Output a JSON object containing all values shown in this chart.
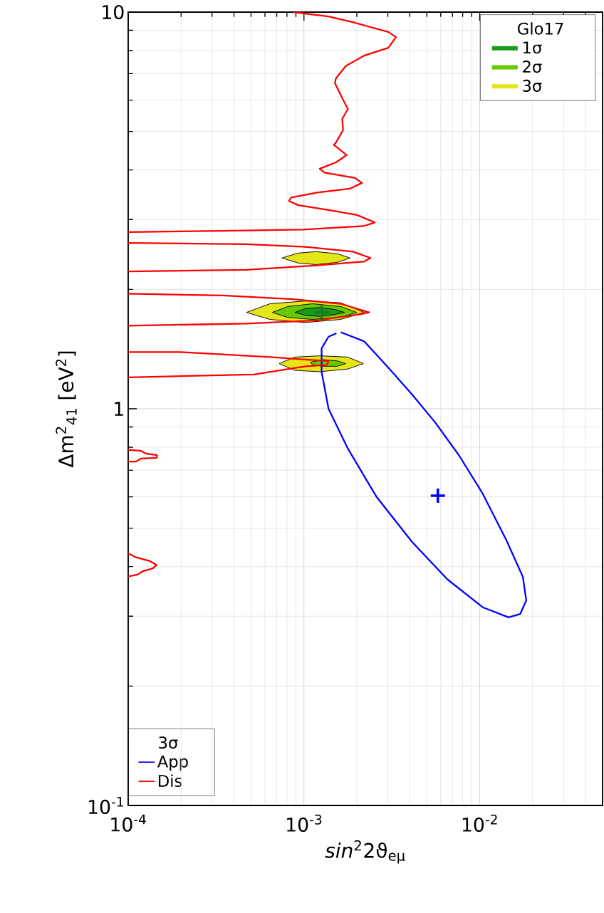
{
  "chart_data": {
    "type": "line",
    "xlabel": "*sin*$^{2}$2ϑ$_{eμ}$",
    "ylabel": "Δm$^{2}$$_{41}$   [eV$^{2}$]",
    "legend_title": "Glo17",
    "annotations": [
      "3σ"
    ],
    "xlim": [
      0.0001,
      0.05
    ],
    "ylim": [
      0.1,
      10
    ],
    "xticks": [
      {
        "value": 0.0001,
        "label": "10$^{-4}$"
      },
      {
        "value": 0.001,
        "label": "10$^{-3}$"
      },
      {
        "value": 0.01,
        "label": "10$^{-2}$"
      }
    ],
    "yticks": [
      {
        "value": 0.1,
        "label": "10$^{-1}$"
      },
      1,
      10
    ],
    "log": "xy",
    "grid": true,
    "legend": "bottom left",
    "series": [
      {
        "name": "1σ",
        "type": "area",
        "color": "#1a9a1a",
        "x": [
          0.000887,
          0.00102,
          0.00123,
          0.0015,
          0.0017,
          0.0015,
          0.00123,
          0.00102,
          0.000887
        ],
        "values": [
          1.75,
          1.79,
          1.8,
          1.78,
          1.75,
          1.73,
          1.71,
          1.72,
          1.75
        ]
      },
      {
        "name": "2σ",
        "type": "area",
        "color": "#66cc00",
        "x": [
          0.00066,
          0.000807,
          0.00112,
          0.00162,
          0.002,
          0.00162,
          0.00112,
          0.000807,
          0.00066,
          null,
          0.00109,
          0.00129,
          0.00155,
          0.00173,
          0.00155,
          0.00129,
          0.00112,
          0.00109
        ],
        "values": [
          1.75,
          1.81,
          1.84,
          1.81,
          1.75,
          1.7,
          1.68,
          1.7,
          1.75,
          null,
          1.31,
          1.33,
          1.32,
          1.3,
          1.28,
          1.28,
          1.29,
          1.31
        ]
      },
      {
        "name": "3σ",
        "type": "area",
        "color": "#e5e51a",
        "x": [
          0.00075,
          0.000929,
          0.00117,
          0.00155,
          0.00183,
          0.00155,
          0.00117,
          0.000929,
          0.00075,
          null,
          0.000471,
          0.00064,
          0.00102,
          0.00162,
          0.0022,
          0.00162,
          0.00102,
          0.00064,
          0.000471,
          null,
          0.000723,
          0.000887,
          0.00123,
          0.00178,
          0.00218,
          0.00178,
          0.00123,
          0.000887,
          0.000723
        ],
        "values": [
          2.4,
          2.47,
          2.49,
          2.46,
          2.4,
          2.34,
          2.31,
          2.33,
          2.4,
          null,
          1.75,
          1.84,
          1.87,
          1.85,
          1.75,
          1.68,
          1.65,
          1.68,
          1.75,
          null,
          1.3,
          1.35,
          1.36,
          1.35,
          1.3,
          1.26,
          1.24,
          1.25,
          1.3
        ]
      },
      {
        "name": "App",
        "color": "#0000ff",
        "x": [
          0.00162,
          0.0022,
          0.00302,
          0.0041,
          0.00557,
          0.00764,
          0.0104,
          0.0141,
          0.0176,
          0.0184,
          0.017,
          0.0146,
          0.0104,
          0.00653,
          0.0041,
          0.00258,
          0.00178,
          0.00138,
          0.00126,
          0.00126,
          0.00138,
          0.00153
        ],
        "values": [
          1.56,
          1.48,
          1.27,
          1.09,
          0.925,
          0.762,
          0.611,
          0.469,
          0.377,
          0.329,
          0.304,
          0.298,
          0.316,
          0.372,
          0.463,
          0.601,
          0.793,
          1.0,
          1.24,
          1.42,
          1.52,
          1.55
        ]
      },
      {
        "name": "Dis",
        "color": "#ff0000",
        "x": [
          0.00087,
          0.00138,
          0.00195,
          0.00302,
          0.00334,
          0.00302,
          0.0022,
          0.00173,
          0.00152,
          0.0015,
          0.00167,
          0.00178,
          0.00165,
          0.00167,
          0.00152,
          0.00148,
          0.00175,
          0.00152,
          0.00123,
          0.00131,
          0.00195,
          0.00214,
          0.00183,
          0.00119,
          0.000845,
          0.000822,
          0.000929,
          0.00138,
          0.002,
          0.00253,
          0.0022,
          0.000991,
          0.000344,
          0.0001,
          null,
          0.0001,
          0.000471,
          0.00102,
          0.0019,
          0.00239,
          0.0022,
          0.00119,
          0.000471,
          0.0001,
          null,
          0.0001,
          0.000344,
          0.00087,
          0.00162,
          0.00235,
          0.00208,
          0.00119,
          0.000471,
          0.0001,
          null,
          0.0001,
          0.000197,
          0.00064,
          0.00105,
          0.00138,
          0.00135,
          0.00102,
          0.000518,
          0.000216,
          0.0001,
          null,
          0.0001,
          0.000118,
          0.000126,
          0.000146,
          0.000145,
          0.000118,
          0.000111,
          0.0001,
          null,
          0.0001,
          0.000111,
          0.000133,
          0.000145,
          0.000138,
          0.000122,
          0.000113,
          0.0001
        ],
        "values": [
          10,
          9.75,
          9.4,
          8.91,
          8.65,
          8.13,
          7.77,
          7.31,
          6.81,
          6.62,
          6.01,
          5.7,
          5.38,
          5.04,
          4.69,
          4.63,
          4.36,
          4.18,
          4.03,
          3.94,
          3.82,
          3.71,
          3.59,
          3.51,
          3.41,
          3.34,
          3.26,
          3.17,
          3.08,
          2.95,
          2.89,
          2.83,
          2.81,
          2.79,
          null,
          2.62,
          2.6,
          2.56,
          2.49,
          2.4,
          2.35,
          2.3,
          2.24,
          2.22,
          null,
          1.95,
          1.93,
          1.89,
          1.84,
          1.75,
          1.73,
          1.67,
          1.64,
          1.62,
          null,
          1.39,
          1.39,
          1.35,
          1.33,
          1.32,
          1.29,
          1.28,
          1.22,
          1.21,
          1.2,
          null,
          0.787,
          0.784,
          0.771,
          0.764,
          0.752,
          0.749,
          0.736,
          0.736,
          null,
          0.432,
          0.422,
          0.413,
          0.404,
          0.396,
          0.39,
          0.382,
          0.378
        ]
      },
      {
        "type": "scatter",
        "marker": "cross",
        "color": "#1a7a1a",
        "x": [
          0.00126
        ],
        "values": [
          1.75
        ]
      },
      {
        "type": "scatter",
        "marker": "cross",
        "color": "#0000ff",
        "x": [
          0.00578
        ],
        "values": [
          0.604
        ]
      }
    ]
  }
}
